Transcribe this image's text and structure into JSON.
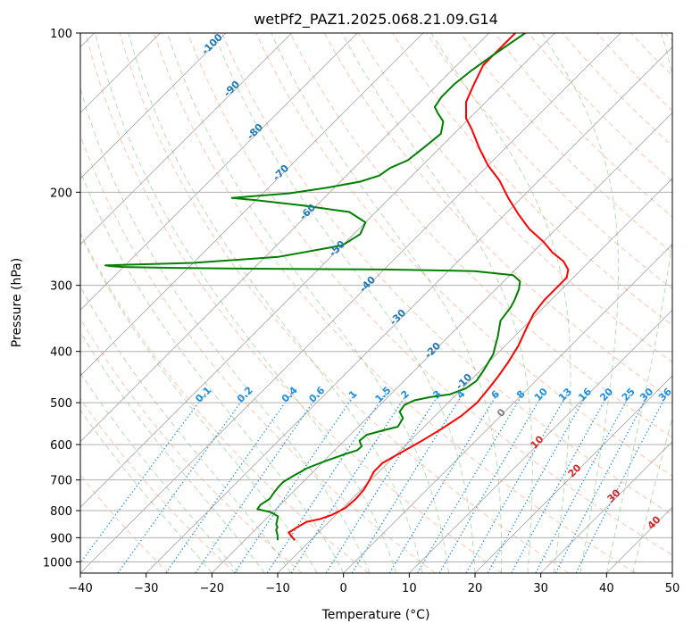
{
  "chart_data": {
    "type": "line",
    "title": "wetPf2_PAZ1.2025.068.21.09.G14",
    "xlabel": "Temperature (°C)",
    "ylabel": "Pressure (hPa)",
    "xlim": [
      -40,
      50
    ],
    "ylim": [
      1050,
      100
    ],
    "yscale": "log",
    "x_ticks": [
      -40,
      -30,
      -20,
      -10,
      0,
      10,
      20,
      30,
      40,
      50
    ],
    "y_ticks": [
      100,
      200,
      300,
      400,
      500,
      600,
      700,
      800,
      900,
      1000
    ],
    "grid": true,
    "skew": "45deg isotherms",
    "colors": {
      "temperature": "#ff0000",
      "dewpoint": "#008000",
      "isotherm_label": "#1f77b4",
      "mixing_ratio": "#1f8fe0",
      "moist_adiabat": "#2ca02c",
      "dry_adiabat": "#ff7f50",
      "theta_label": "#d62728"
    },
    "series": [
      {
        "name": "",
        "role": "temperature",
        "points": [
          [
            -12.4,
            910
          ],
          [
            -13.8,
            890
          ],
          [
            -14.5,
            880
          ],
          [
            -14.0,
            860
          ],
          [
            -13.4,
            840
          ],
          [
            -11.8,
            830
          ],
          [
            -10.6,
            815
          ],
          [
            -9.6,
            790
          ],
          [
            -9.4,
            760
          ],
          [
            -9.6,
            730
          ],
          [
            -10.2,
            700
          ],
          [
            -10.8,
            675
          ],
          [
            -10.8,
            650
          ],
          [
            -9.5,
            620
          ],
          [
            -8.2,
            590
          ],
          [
            -7.0,
            560
          ],
          [
            -6.0,
            530
          ],
          [
            -5.6,
            500
          ],
          [
            -6.0,
            470
          ],
          [
            -6.4,
            445
          ],
          [
            -7.0,
            420
          ],
          [
            -8.0,
            390
          ],
          [
            -9.5,
            360
          ],
          [
            -10.5,
            340
          ],
          [
            -11.0,
            320
          ],
          [
            -11.0,
            300
          ],
          [
            -11.0,
            290
          ],
          [
            -12.0,
            280
          ],
          [
            -14.0,
            270
          ],
          [
            -17.0,
            260
          ],
          [
            -20.0,
            248
          ],
          [
            -24.0,
            235
          ],
          [
            -28.0,
            220
          ],
          [
            -32.0,
            205
          ],
          [
            -36.0,
            190
          ],
          [
            -40.0,
            178
          ],
          [
            -44.0,
            165
          ],
          [
            -48.0,
            152
          ],
          [
            -50.5,
            145
          ],
          [
            -53.0,
            135
          ],
          [
            -54.5,
            125
          ],
          [
            -56.0,
            115
          ],
          [
            -56.0,
            108
          ],
          [
            -56.0,
            100
          ]
        ]
      },
      {
        "name": "",
        "role": "dewpoint",
        "points": [
          [
            -15.0,
            910
          ],
          [
            -15.8,
            890
          ],
          [
            -16.8,
            870
          ],
          [
            -17.0,
            860
          ],
          [
            -17.6,
            850
          ],
          [
            -18.6,
            820
          ],
          [
            -20.4,
            805
          ],
          [
            -22.8,
            795
          ],
          [
            -23.0,
            780
          ],
          [
            -22.5,
            760
          ],
          [
            -22.8,
            740
          ],
          [
            -23.0,
            720
          ],
          [
            -23.0,
            705
          ],
          [
            -22.3,
            685
          ],
          [
            -21.5,
            665
          ],
          [
            -19.8,
            645
          ],
          [
            -17.8,
            625
          ],
          [
            -16.6,
            615
          ],
          [
            -16.5,
            605
          ],
          [
            -17.7,
            590
          ],
          [
            -17.5,
            575
          ],
          [
            -15.8,
            565
          ],
          [
            -14.0,
            555
          ],
          [
            -14.5,
            535
          ],
          [
            -16.0,
            520
          ],
          [
            -16.3,
            505
          ],
          [
            -15.5,
            495
          ],
          [
            -13.6,
            488
          ],
          [
            -11.0,
            482
          ],
          [
            -9.5,
            470
          ],
          [
            -9.0,
            455
          ],
          [
            -9.5,
            435
          ],
          [
            -10.0,
            420
          ],
          [
            -10.5,
            405
          ],
          [
            -11.5,
            390
          ],
          [
            -12.5,
            375
          ],
          [
            -14.5,
            350
          ],
          [
            -15.0,
            330
          ],
          [
            -15.5,
            320
          ],
          [
            -16.5,
            305
          ],
          [
            -17.5,
            295
          ],
          [
            -19.5,
            287
          ],
          [
            -26.0,
            282
          ],
          [
            -40.0,
            280
          ],
          [
            -60.0,
            279
          ],
          [
            -72.0,
            278
          ],
          [
            -80.0,
            277
          ],
          [
            -82.0,
            276
          ],
          [
            -83.0,
            275
          ],
          [
            -70.0,
            272
          ],
          [
            -58.0,
            265
          ],
          [
            -50.0,
            252
          ],
          [
            -49.0,
            240
          ],
          [
            -50.0,
            228
          ],
          [
            -54.0,
            218
          ],
          [
            -62.0,
            212
          ],
          [
            -70.0,
            207
          ],
          [
            -74.0,
            205
          ],
          [
            -72.0,
            204
          ],
          [
            -66.0,
            201
          ],
          [
            -61.0,
            196
          ],
          [
            -57.0,
            191
          ],
          [
            -55.0,
            186
          ],
          [
            -54.5,
            180
          ],
          [
            -53.0,
            174
          ],
          [
            -52.5,
            165
          ],
          [
            -52.0,
            155
          ],
          [
            -53.5,
            147
          ],
          [
            -55.5,
            142
          ],
          [
            -57.0,
            138
          ],
          [
            -57.5,
            132
          ],
          [
            -57.5,
            125
          ],
          [
            -57.0,
            118
          ],
          [
            -56.0,
            110
          ],
          [
            -54.5,
            100
          ]
        ]
      }
    ],
    "isotherm_labels": [
      "-100",
      "-90",
      "-80",
      "-70",
      "-60",
      "-50",
      "-40",
      "-30",
      "-20",
      "-10"
    ],
    "mixing_ratio_labels": [
      "0.1",
      "0.2",
      "0.4",
      "0.6",
      "1",
      "1.5",
      "2",
      "3",
      "4",
      "6",
      "8",
      "10",
      "13",
      "16",
      "20",
      "25",
      "30",
      "36"
    ],
    "mixing_ratio_values": [
      0.1,
      0.2,
      0.4,
      0.6,
      1,
      1.5,
      2,
      3,
      4,
      6,
      8,
      10,
      13,
      16,
      20,
      25,
      30,
      36
    ],
    "isotherm_zero_label": "0",
    "theta_e_labels": [
      "10",
      "20",
      "30",
      "40"
    ]
  }
}
